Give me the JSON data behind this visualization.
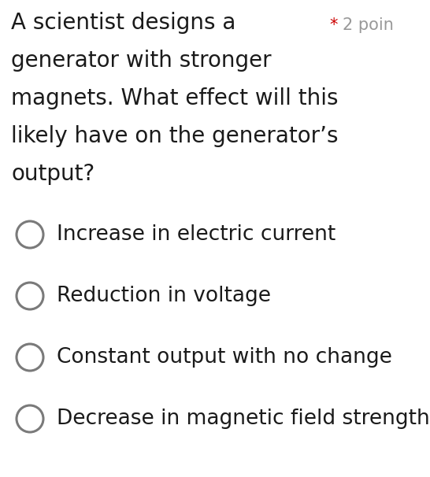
{
  "question_text_lines": [
    "A scientist designs a",
    "generator with stronger",
    "magnets. What effect will this",
    "likely have on the generator’s",
    "output?"
  ],
  "points_star": "*",
  "points_label": "2 poin",
  "points_star_color": "#cc0000",
  "points_text_color": "#999999",
  "options": [
    "Increase in electric current",
    "Reduction in voltage",
    "Constant output with no change",
    "Decrease in magnetic field strength"
  ],
  "background_color": "#ffffff",
  "question_color": "#1a1a1a",
  "option_color": "#1a1a1a",
  "circle_edge_color": "#7a7a7a",
  "circle_fill_color": "#ffffff",
  "question_fontsize": 20,
  "option_fontsize": 19,
  "points_fontsize": 15,
  "fig_width": 5.46,
  "fig_height": 6.06,
  "dpi": 100
}
